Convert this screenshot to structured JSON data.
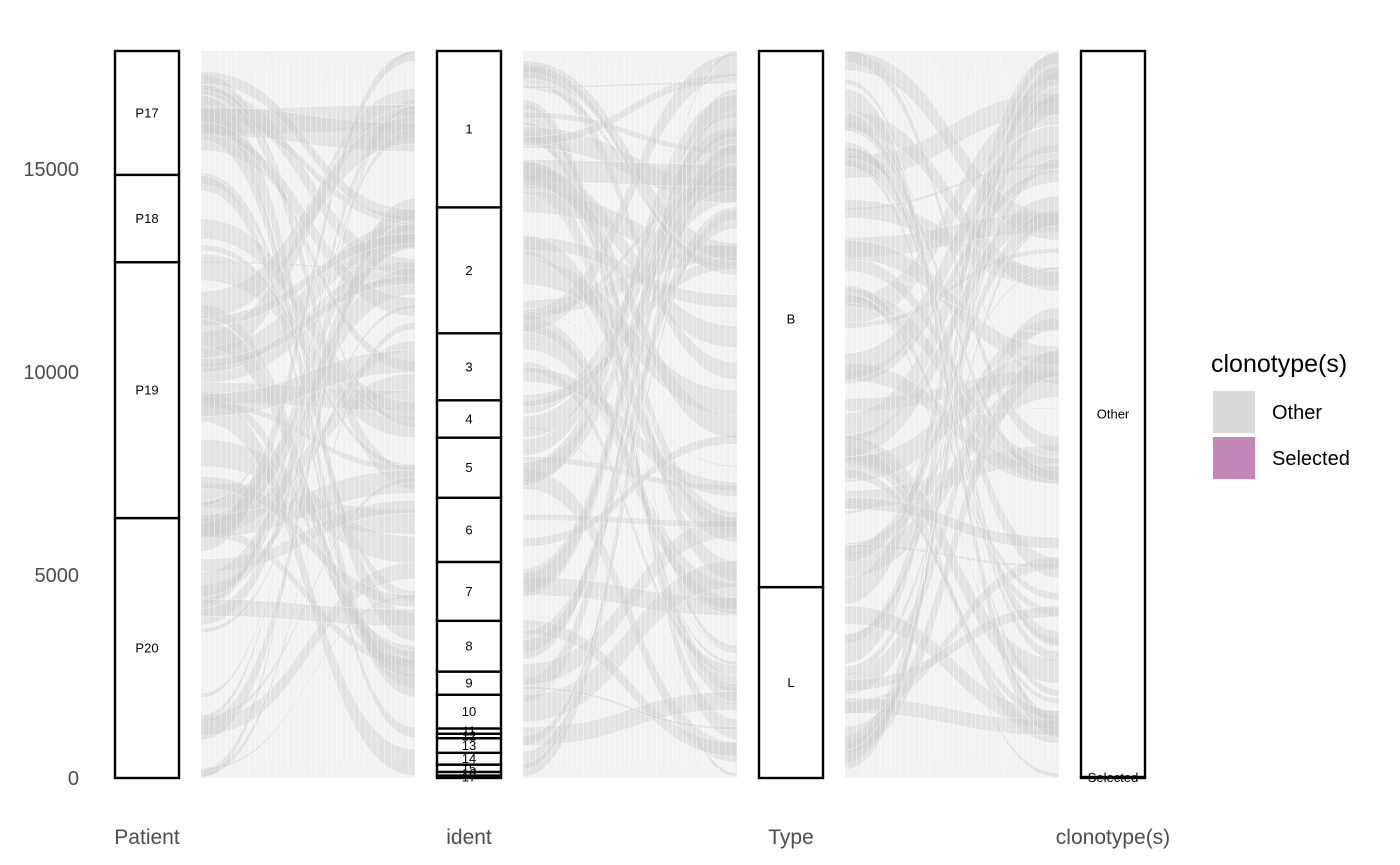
{
  "chart_data": {
    "type": "alluvial",
    "axes": [
      "Patient",
      "ident",
      "Type",
      "clonotype(s)"
    ],
    "ylim": [
      0,
      17900
    ],
    "y_ticks": [
      0,
      5000,
      10000,
      15000
    ],
    "grid": false,
    "strata": [
      {
        "axis": "Patient",
        "items": [
          {
            "label": "P20",
            "value": 6400
          },
          {
            "label": "P19",
            "value": 6300
          },
          {
            "label": "P18",
            "value": 2150
          },
          {
            "label": "P17",
            "value": 3050
          }
        ]
      },
      {
        "axis": "ident",
        "items": [
          {
            "label": "17",
            "value": 60
          },
          {
            "label": "16",
            "value": 90
          },
          {
            "label": "15",
            "value": 180
          },
          {
            "label": "14",
            "value": 290
          },
          {
            "label": "13",
            "value": 360
          },
          {
            "label": "12",
            "value": 110
          },
          {
            "label": "11",
            "value": 130
          },
          {
            "label": "10",
            "value": 830
          },
          {
            "label": "9",
            "value": 570
          },
          {
            "label": "8",
            "value": 1250
          },
          {
            "label": "7",
            "value": 1450
          },
          {
            "label": "6",
            "value": 1580
          },
          {
            "label": "5",
            "value": 1480
          },
          {
            "label": "4",
            "value": 920
          },
          {
            "label": "3",
            "value": 1650
          },
          {
            "label": "2",
            "value": 3100
          },
          {
            "label": "1",
            "value": 3850
          }
        ]
      },
      {
        "axis": "Type",
        "items": [
          {
            "label": "L",
            "value": 4700
          },
          {
            "label": "B",
            "value": 13200
          }
        ]
      },
      {
        "axis": "clonotype(s)",
        "items": [
          {
            "label": "Selected",
            "value": 25
          },
          {
            "label": "Other",
            "value": 17875
          }
        ]
      }
    ],
    "legend": {
      "title": "clonotype(s)",
      "position": "right",
      "entries": [
        {
          "label": "Other",
          "color": "#d9d9d9"
        },
        {
          "label": "Selected",
          "color": "#c386b8"
        }
      ]
    },
    "flow_color": "#d9d9d9"
  }
}
